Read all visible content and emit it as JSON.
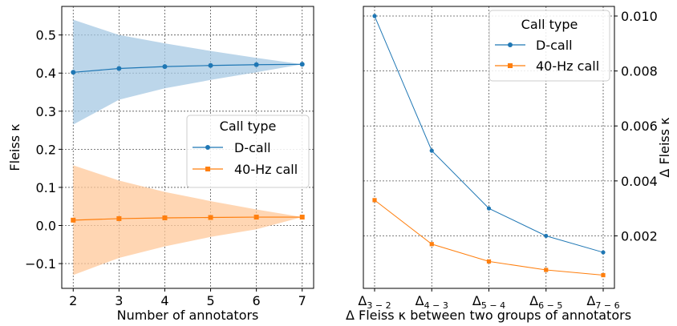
{
  "chart_data": [
    {
      "type": "line",
      "title": "",
      "xlabel": "Number of annotators",
      "ylabel": "Fleiss κ",
      "x": [
        2,
        3,
        4,
        5,
        6,
        7
      ],
      "xlim": [
        1.75,
        7.25
      ],
      "ylim": [
        -0.165,
        0.575
      ],
      "xticks": [
        "2",
        "3",
        "4",
        "5",
        "6",
        "7"
      ],
      "yticks": [
        -0.1,
        0.0,
        0.1,
        0.2,
        0.3,
        0.4,
        0.5
      ],
      "ytick_labels": [
        "−0.1",
        "0.0",
        "0.1",
        "0.2",
        "0.3",
        "0.4",
        "0.5"
      ],
      "grid": true,
      "legend": {
        "title": "Call type",
        "placement": "center-right"
      },
      "series": [
        {
          "name": "D-call",
          "color": "#1f77b4",
          "band_color": "#a6c8e3",
          "marker": "circle",
          "values": [
            0.402,
            0.412,
            0.417,
            0.42,
            0.422,
            0.423
          ],
          "band_upper": [
            0.54,
            0.5,
            0.478,
            0.458,
            0.44,
            0.423
          ],
          "band_lower": [
            0.265,
            0.33,
            0.36,
            0.382,
            0.402,
            0.423
          ]
        },
        {
          "name": "40-Hz call",
          "color": "#ff7f0e",
          "band_color": "#ffc89a",
          "marker": "square",
          "values": [
            0.014,
            0.018,
            0.02,
            0.021,
            0.022,
            0.022
          ],
          "band_upper": [
            0.158,
            0.118,
            0.088,
            0.064,
            0.042,
            0.022
          ],
          "band_lower": [
            -0.13,
            -0.085,
            -0.055,
            -0.03,
            -0.01,
            0.022
          ]
        }
      ]
    },
    {
      "type": "line",
      "title": "",
      "xlabel": "Δ Fleiss κ between two groups of annotators",
      "ylabel": "Δ Fleiss κ",
      "categories": [
        {
          "main": "Δ",
          "sub": "3 − 2"
        },
        {
          "main": "Δ",
          "sub": "4 − 3"
        },
        {
          "main": "Δ",
          "sub": "5 − 4"
        },
        {
          "main": "Δ",
          "sub": "6 − 5"
        },
        {
          "main": "Δ",
          "sub": "7 − 6"
        }
      ],
      "ylim": [
        9e-05,
        0.01035
      ],
      "yticks": [
        0.002,
        0.004,
        0.006,
        0.008,
        0.01
      ],
      "ytick_labels": [
        "0.002",
        "0.004",
        "0.006",
        "0.008",
        "0.010"
      ],
      "y_axis_side": "right",
      "grid": true,
      "legend": {
        "title": "Call type",
        "placement": "top-right"
      },
      "series": [
        {
          "name": "D-call",
          "color": "#1f77b4",
          "marker": "circle",
          "values": [
            0.01,
            0.0051,
            0.003,
            0.002,
            0.0014
          ]
        },
        {
          "name": "40-Hz call",
          "color": "#ff7f0e",
          "marker": "square",
          "values": [
            0.0033,
            0.0017,
            0.00107,
            0.00076,
            0.00057
          ]
        }
      ]
    }
  ]
}
